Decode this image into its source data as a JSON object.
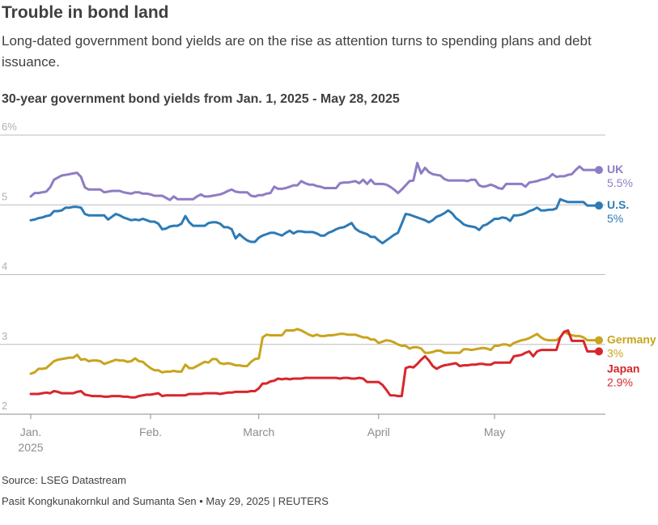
{
  "header": {
    "title": "Trouble in bond land",
    "subtitle": "Long-dated government bond yields are on the rise as attention turns to spending plans and debt issuance."
  },
  "chart_data": {
    "type": "line",
    "title": "30-year government bond yields from Jan. 1, 2025 - May 28, 2025",
    "xlabel": "",
    "ylabel": "",
    "ylim": [
      2,
      6
    ],
    "yticks": [
      {
        "value": 6,
        "label": "6%"
      },
      {
        "value": 5,
        "label": "5"
      },
      {
        "value": 4,
        "label": "4"
      },
      {
        "value": 3,
        "label": "3"
      },
      {
        "value": 2,
        "label": "2"
      }
    ],
    "xlim": [
      1,
      148
    ],
    "xticks": [
      {
        "value": 1,
        "label": "Jan.",
        "sublabel": "2025"
      },
      {
        "value": 32,
        "label": "Feb.",
        "sublabel": ""
      },
      {
        "value": 60,
        "label": "March",
        "sublabel": ""
      },
      {
        "value": 91,
        "label": "April",
        "sublabel": ""
      },
      {
        "value": 121,
        "label": "May",
        "sublabel": ""
      }
    ],
    "x_unit": "day of year",
    "series": [
      {
        "name": "UK",
        "end_label": "5.5%",
        "color": "#8f7cc4",
        "x": [
          1,
          2,
          3,
          4,
          5,
          6,
          7,
          8,
          9,
          10,
          11,
          12,
          13,
          14,
          15,
          16,
          17,
          18,
          19,
          20,
          21,
          22,
          23,
          24,
          25,
          26,
          27,
          28,
          29,
          30,
          31,
          32,
          33,
          34,
          35,
          36,
          37,
          38,
          39,
          40,
          41,
          42,
          43,
          44,
          45,
          46,
          47,
          48,
          49,
          50,
          51,
          52,
          53,
          54,
          55,
          56,
          57,
          58,
          59,
          60,
          61,
          62,
          63,
          64,
          65,
          66,
          67,
          68,
          69,
          70,
          71,
          72,
          73,
          74,
          75,
          76,
          77,
          78,
          79,
          80,
          81,
          82,
          83,
          84,
          85,
          86,
          87,
          88,
          89,
          90,
          91,
          92,
          93,
          94,
          95,
          96,
          97,
          98,
          99,
          100,
          101,
          102,
          103,
          104,
          105,
          106,
          107,
          108,
          109,
          110,
          111,
          112,
          113,
          114,
          115,
          116,
          117,
          118,
          119,
          120,
          121,
          122,
          123,
          124,
          125,
          126,
          127,
          128,
          129,
          130,
          131,
          132,
          133,
          134,
          135,
          136,
          137,
          138,
          139,
          140,
          141,
          142,
          143,
          144,
          145,
          146,
          147,
          148
        ],
        "values": [
          5.12,
          5.17,
          5.17,
          5.18,
          5.19,
          5.25,
          5.36,
          5.39,
          5.42,
          5.43,
          5.44,
          5.45,
          5.46,
          5.4,
          5.25,
          5.22,
          5.22,
          5.22,
          5.22,
          5.18,
          5.19,
          5.2,
          5.2,
          5.2,
          5.18,
          5.17,
          5.16,
          5.18,
          5.18,
          5.16,
          5.16,
          5.15,
          5.13,
          5.13,
          5.13,
          5.1,
          5.07,
          5.12,
          5.08,
          5.08,
          5.08,
          5.08,
          5.08,
          5.12,
          5.15,
          5.12,
          5.12,
          5.13,
          5.14,
          5.15,
          5.17,
          5.2,
          5.22,
          5.19,
          5.18,
          5.18,
          5.18,
          5.13,
          5.12,
          5.14,
          5.14,
          5.16,
          5.17,
          5.26,
          5.23,
          5.23,
          5.24,
          5.26,
          5.28,
          5.28,
          5.34,
          5.31,
          5.29,
          5.29,
          5.27,
          5.26,
          5.24,
          5.24,
          5.24,
          5.24,
          5.31,
          5.32,
          5.32,
          5.33,
          5.34,
          5.31,
          5.36,
          5.3,
          5.36,
          5.3,
          5.3,
          5.3,
          5.29,
          5.26,
          5.22,
          5.17,
          5.22,
          5.28,
          5.34,
          5.35,
          5.6,
          5.45,
          5.53,
          5.47,
          5.44,
          5.43,
          5.42,
          5.37,
          5.35,
          5.35,
          5.35,
          5.35,
          5.35,
          5.34,
          5.36,
          5.36,
          5.28,
          5.26,
          5.27,
          5.29,
          5.27,
          5.24,
          5.23,
          5.3,
          5.3,
          5.3,
          5.3,
          5.3,
          5.26,
          5.32,
          5.33,
          5.34,
          5.36,
          5.37,
          5.39,
          5.44,
          5.4,
          5.41,
          5.41,
          5.43,
          5.44,
          5.5,
          5.55,
          5.5,
          5.5,
          5.5,
          5.5,
          5.5
        ]
      },
      {
        "name": "U.S.",
        "end_label": "5%",
        "color": "#2c7bb6",
        "x": [
          1,
          2,
          3,
          4,
          5,
          6,
          7,
          8,
          9,
          10,
          11,
          12,
          13,
          14,
          15,
          16,
          17,
          18,
          19,
          20,
          21,
          22,
          23,
          24,
          25,
          26,
          27,
          28,
          29,
          30,
          31,
          32,
          33,
          34,
          35,
          36,
          37,
          38,
          39,
          40,
          41,
          42,
          43,
          44,
          45,
          46,
          47,
          48,
          49,
          50,
          51,
          52,
          53,
          54,
          55,
          56,
          57,
          58,
          59,
          60,
          61,
          62,
          63,
          64,
          65,
          66,
          67,
          68,
          69,
          70,
          71,
          72,
          73,
          74,
          75,
          76,
          77,
          78,
          79,
          80,
          81,
          82,
          83,
          84,
          85,
          86,
          87,
          88,
          89,
          90,
          91,
          92,
          93,
          94,
          95,
          96,
          97,
          98,
          99,
          100,
          101,
          102,
          103,
          104,
          105,
          106,
          107,
          108,
          109,
          110,
          111,
          112,
          113,
          114,
          115,
          116,
          117,
          118,
          119,
          120,
          121,
          122,
          123,
          124,
          125,
          126,
          127,
          128,
          129,
          130,
          131,
          132,
          133,
          134,
          135,
          136,
          137,
          138,
          139,
          140,
          141,
          142,
          143,
          144,
          145,
          146,
          147,
          148
        ],
        "values": [
          4.78,
          4.79,
          4.81,
          4.82,
          4.84,
          4.85,
          4.91,
          4.91,
          4.92,
          4.96,
          4.96,
          4.97,
          4.97,
          4.96,
          4.87,
          4.85,
          4.85,
          4.85,
          4.85,
          4.85,
          4.79,
          4.83,
          4.87,
          4.85,
          4.82,
          4.8,
          4.78,
          4.79,
          4.78,
          4.8,
          4.78,
          4.76,
          4.76,
          4.73,
          4.65,
          4.66,
          4.69,
          4.7,
          4.7,
          4.73,
          4.84,
          4.75,
          4.7,
          4.7,
          4.7,
          4.7,
          4.74,
          4.75,
          4.75,
          4.73,
          4.68,
          4.68,
          4.65,
          4.52,
          4.58,
          4.53,
          4.49,
          4.47,
          4.47,
          4.53,
          4.56,
          4.58,
          4.6,
          4.6,
          4.58,
          4.56,
          4.6,
          4.63,
          4.59,
          4.62,
          4.62,
          4.61,
          4.61,
          4.61,
          4.59,
          4.56,
          4.56,
          4.6,
          4.62,
          4.65,
          4.67,
          4.68,
          4.71,
          4.74,
          4.66,
          4.62,
          4.6,
          4.58,
          4.54,
          4.54,
          4.49,
          4.45,
          4.49,
          4.53,
          4.57,
          4.6,
          4.73,
          4.87,
          4.86,
          4.84,
          4.82,
          4.8,
          4.78,
          4.75,
          4.78,
          4.83,
          4.85,
          4.88,
          4.92,
          4.88,
          4.81,
          4.77,
          4.72,
          4.7,
          4.69,
          4.68,
          4.64,
          4.7,
          4.72,
          4.76,
          4.8,
          4.8,
          4.82,
          4.81,
          4.77,
          4.85,
          4.85,
          4.86,
          4.88,
          4.91,
          4.93,
          4.96,
          4.92,
          4.92,
          4.93,
          4.93,
          4.95,
          5.08,
          5.06,
          5.04,
          5.04,
          5.04,
          5.04,
          5.04,
          4.99,
          4.99,
          4.99,
          4.99
        ]
      },
      {
        "name": "Germany",
        "end_label": "3%",
        "color": "#c9a41d",
        "x": [
          1,
          2,
          3,
          4,
          5,
          6,
          7,
          8,
          9,
          10,
          11,
          12,
          13,
          14,
          15,
          16,
          17,
          18,
          19,
          20,
          21,
          22,
          23,
          24,
          25,
          26,
          27,
          28,
          29,
          30,
          31,
          32,
          33,
          34,
          35,
          36,
          37,
          38,
          39,
          40,
          41,
          42,
          43,
          44,
          45,
          46,
          47,
          48,
          49,
          50,
          51,
          52,
          53,
          54,
          55,
          56,
          57,
          58,
          59,
          60,
          61,
          62,
          63,
          64,
          65,
          66,
          67,
          68,
          69,
          70,
          71,
          72,
          73,
          74,
          75,
          76,
          77,
          78,
          79,
          80,
          81,
          82,
          83,
          84,
          85,
          86,
          87,
          88,
          89,
          90,
          91,
          92,
          93,
          94,
          95,
          96,
          97,
          98,
          99,
          100,
          101,
          102,
          103,
          104,
          105,
          106,
          107,
          108,
          109,
          110,
          111,
          112,
          113,
          114,
          115,
          116,
          117,
          118,
          119,
          120,
          121,
          122,
          123,
          124,
          125,
          126,
          127,
          128,
          129,
          130,
          131,
          132,
          133,
          134,
          135,
          136,
          137,
          138,
          139,
          140,
          141,
          142,
          143,
          144,
          145,
          146,
          147,
          148
        ],
        "values": [
          2.58,
          2.6,
          2.65,
          2.65,
          2.66,
          2.71,
          2.76,
          2.78,
          2.79,
          2.8,
          2.81,
          2.81,
          2.85,
          2.78,
          2.79,
          2.76,
          2.77,
          2.77,
          2.76,
          2.72,
          2.74,
          2.76,
          2.78,
          2.77,
          2.77,
          2.75,
          2.76,
          2.8,
          2.76,
          2.75,
          2.7,
          2.66,
          2.63,
          2.63,
          2.6,
          2.61,
          2.61,
          2.62,
          2.61,
          2.61,
          2.71,
          2.66,
          2.66,
          2.69,
          2.72,
          2.75,
          2.74,
          2.79,
          2.79,
          2.73,
          2.72,
          2.73,
          2.72,
          2.7,
          2.7,
          2.69,
          2.69,
          2.75,
          2.79,
          2.8,
          3.1,
          3.14,
          3.13,
          3.13,
          3.13,
          3.13,
          3.2,
          3.2,
          3.2,
          3.22,
          3.2,
          3.17,
          3.14,
          3.12,
          3.14,
          3.12,
          3.12,
          3.13,
          3.13,
          3.14,
          3.15,
          3.15,
          3.14,
          3.14,
          3.14,
          3.12,
          3.1,
          3.1,
          3.07,
          3.07,
          3.02,
          3.04,
          3.06,
          3.05,
          3.03,
          3.0,
          2.98,
          2.98,
          2.94,
          2.96,
          2.96,
          2.94,
          2.88,
          2.88,
          2.89,
          2.91,
          2.91,
          2.88,
          2.88,
          2.88,
          2.88,
          2.88,
          2.93,
          2.93,
          2.92,
          2.93,
          2.94,
          2.95,
          2.94,
          2.92,
          2.98,
          2.98,
          3.0,
          3.0,
          2.98,
          3.02,
          3.04,
          3.06,
          3.07,
          3.09,
          3.12,
          3.15,
          3.1,
          3.07,
          3.06,
          3.06,
          3.06,
          3.1,
          3.18,
          3.15,
          3.13,
          3.12,
          3.12,
          3.1,
          3.06,
          3.06,
          3.06,
          3.06
        ]
      },
      {
        "name": "Japan",
        "end_label": "2.9%",
        "color": "#d7262c",
        "x": [
          1,
          2,
          3,
          4,
          5,
          6,
          7,
          8,
          9,
          10,
          11,
          12,
          13,
          14,
          15,
          16,
          17,
          18,
          19,
          20,
          21,
          22,
          23,
          24,
          25,
          26,
          27,
          28,
          29,
          30,
          31,
          32,
          33,
          34,
          35,
          36,
          37,
          38,
          39,
          40,
          41,
          42,
          43,
          44,
          45,
          46,
          47,
          48,
          49,
          50,
          51,
          52,
          53,
          54,
          55,
          56,
          57,
          58,
          59,
          60,
          61,
          62,
          63,
          64,
          65,
          66,
          67,
          68,
          69,
          70,
          71,
          72,
          73,
          74,
          75,
          76,
          77,
          78,
          79,
          80,
          81,
          82,
          83,
          84,
          85,
          86,
          87,
          88,
          89,
          90,
          91,
          92,
          93,
          94,
          95,
          96,
          97,
          98,
          99,
          100,
          101,
          102,
          103,
          104,
          105,
          106,
          107,
          108,
          109,
          110,
          111,
          112,
          113,
          114,
          115,
          116,
          117,
          118,
          119,
          120,
          121,
          122,
          123,
          124,
          125,
          126,
          127,
          128,
          129,
          130,
          131,
          132,
          133,
          134,
          135,
          136,
          137,
          138,
          139,
          140,
          141,
          142,
          143,
          144,
          145,
          146,
          147,
          148
        ],
        "values": [
          2.29,
          2.29,
          2.29,
          2.3,
          2.31,
          2.3,
          2.33,
          2.32,
          2.3,
          2.3,
          2.3,
          2.3,
          2.32,
          2.33,
          2.28,
          2.27,
          2.26,
          2.26,
          2.26,
          2.25,
          2.25,
          2.26,
          2.26,
          2.26,
          2.25,
          2.25,
          2.24,
          2.24,
          2.26,
          2.27,
          2.28,
          2.28,
          2.29,
          2.3,
          2.26,
          2.27,
          2.27,
          2.27,
          2.27,
          2.27,
          2.27,
          2.29,
          2.29,
          2.29,
          2.29,
          2.3,
          2.3,
          2.3,
          2.3,
          2.29,
          2.3,
          2.31,
          2.31,
          2.32,
          2.32,
          2.32,
          2.32,
          2.33,
          2.33,
          2.37,
          2.44,
          2.44,
          2.47,
          2.48,
          2.51,
          2.5,
          2.51,
          2.5,
          2.51,
          2.51,
          2.51,
          2.52,
          2.52,
          2.52,
          2.52,
          2.52,
          2.52,
          2.52,
          2.52,
          2.52,
          2.51,
          2.52,
          2.52,
          2.51,
          2.51,
          2.52,
          2.51,
          2.46,
          2.46,
          2.46,
          2.46,
          2.42,
          2.35,
          2.27,
          2.27,
          2.26,
          2.26,
          2.66,
          2.68,
          2.67,
          2.72,
          2.78,
          2.83,
          2.77,
          2.69,
          2.65,
          2.68,
          2.7,
          2.71,
          2.72,
          2.73,
          2.69,
          2.7,
          2.7,
          2.71,
          2.71,
          2.72,
          2.72,
          2.71,
          2.71,
          2.74,
          2.74,
          2.74,
          2.74,
          2.74,
          2.83,
          2.84,
          2.85,
          2.88,
          2.9,
          2.83,
          2.9,
          2.92,
          2.92,
          2.92,
          2.92,
          2.92,
          3.1,
          3.18,
          3.2,
          3.05,
          3.05,
          3.05,
          3.05,
          2.9,
          2.9,
          2.9,
          2.9
        ]
      }
    ]
  },
  "footer": {
    "source": "Source: LSEG Datastream",
    "credit": "Pasit Kongkunakornkul and Sumanta Sen • May 29, 2025 | REUTERS"
  }
}
